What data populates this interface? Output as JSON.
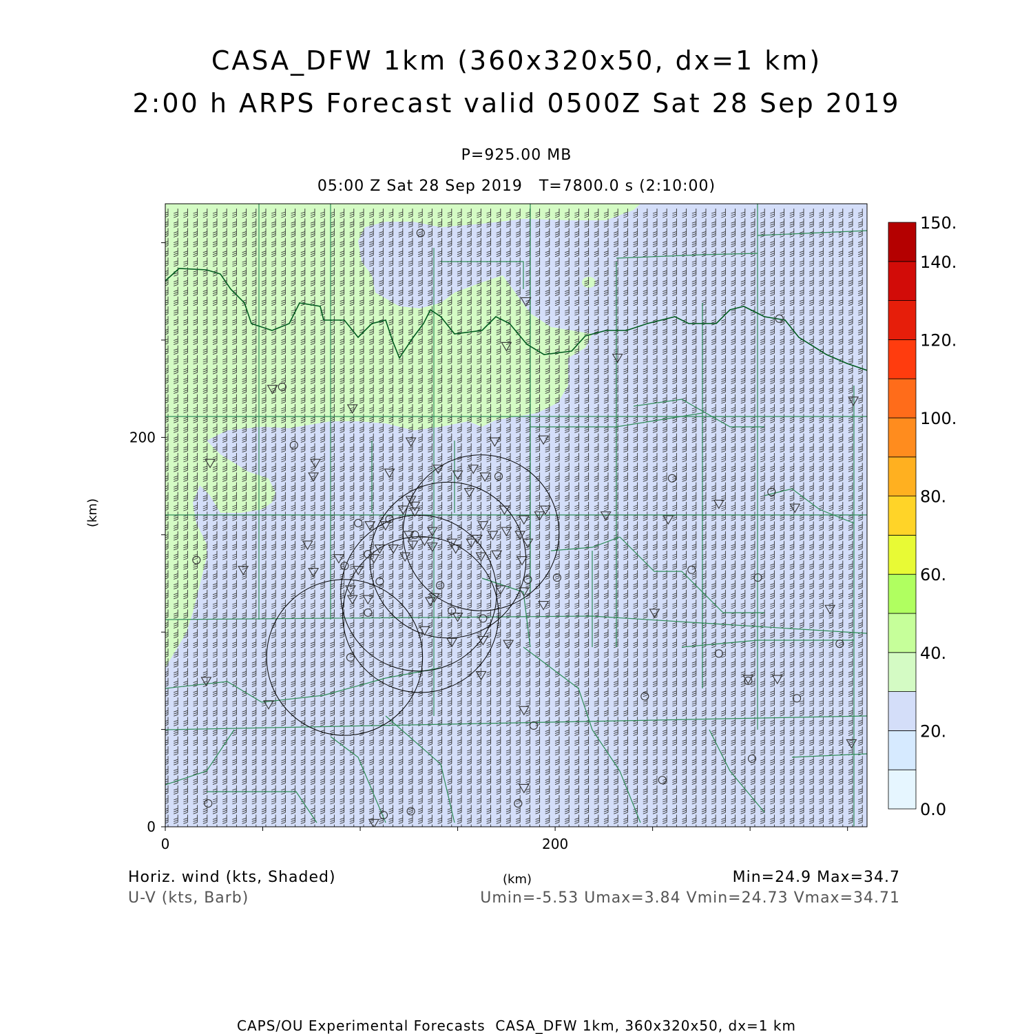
{
  "header": {
    "title_line1": "CASA_DFW 1km (360x320x50, dx=1 km)",
    "title_line2": "2:00 h ARPS Forecast valid 0500Z Sat 28 Sep 2019",
    "level": "P=925.00 MB",
    "time_info": "05:00 Z Sat 28 Sep 2019   T=7800.0 s (2:10:00)"
  },
  "footer": {
    "field_label": "Horiz. wind (kts, Shaded)",
    "vector_label": "U-V (kts, Barb)",
    "x_unit": "(km)",
    "minmax": "Min=24.9 Max=34.7",
    "uv_stats": "Umin=-5.53 Umax=3.84 Vmin=24.73 Vmax=34.71",
    "credit": "CAPS/OU Experimental Forecasts  CASA_DFW 1km, 360x320x50, dx=1 km"
  },
  "colors": {
    "low_wind_fill": "#d4def9",
    "high_wind_fill": "#d4fbc4",
    "county_lines": "#2e8b57",
    "state_border": "#005a1e",
    "barbs": "#333333"
  },
  "chart_data": {
    "type": "heatmap",
    "field": "horizontal wind speed (kts)",
    "xlabel": "(km)",
    "ylabel": "(km)",
    "xlim": [
      0,
      360
    ],
    "ylim": [
      0,
      320
    ],
    "x_ticks": [
      0,
      200
    ],
    "y_ticks": [
      0,
      200
    ],
    "min": 24.9,
    "max": 34.7,
    "stats": {
      "Umin": -5.53,
      "Umax": 3.84,
      "Vmin": 24.73,
      "Vmax": 34.71
    },
    "colorbar": {
      "levels": [
        0,
        10,
        20,
        30,
        40,
        50,
        60,
        70,
        80,
        90,
        100,
        110,
        120,
        130,
        140,
        150
      ],
      "labels": [
        "0.0",
        "20.",
        "40.",
        "60.",
        "80.",
        "100.",
        "120.",
        "140.",
        "150."
      ],
      "label_values": [
        0,
        20,
        40,
        60,
        80,
        100,
        120,
        140,
        150
      ],
      "colors": [
        "#e6f6ff",
        "#d6eaff",
        "#d4def9",
        "#d4fbc4",
        "#c6ff9a",
        "#b0ff60",
        "#e8fa35",
        "#ffd428",
        "#ffb020",
        "#ff8c1e",
        "#ff6c1a",
        "#ff3c0e",
        "#e61e0a",
        "#d20c08",
        "#b40000"
      ]
    },
    "shaded_regions": [
      {
        "range_kts": [
          30,
          40
        ],
        "description_area": "northwest and west"
      },
      {
        "range_kts": [
          20,
          30
        ],
        "description_area": "remainder"
      }
    ],
    "radar_sites": [
      {
        "x": 92,
        "y": 87,
        "radius": 40
      },
      {
        "x": 131,
        "y": 109,
        "radius": 40
      },
      {
        "x": 130,
        "y": 120,
        "radius": 40
      },
      {
        "x": 145,
        "y": 137,
        "radius": 40
      },
      {
        "x": 162,
        "y": 151,
        "radius": 40
      }
    ],
    "stations_circle": [
      [
        131,
        305
      ],
      [
        60,
        226
      ],
      [
        315,
        261
      ],
      [
        66,
        196
      ],
      [
        260,
        179
      ],
      [
        171,
        180
      ],
      [
        16,
        137
      ],
      [
        99,
        156
      ],
      [
        92,
        134
      ],
      [
        104,
        140
      ],
      [
        110,
        126
      ],
      [
        104,
        110
      ],
      [
        95,
        87
      ],
      [
        147,
        111
      ],
      [
        141,
        124
      ],
      [
        186,
        127
      ],
      [
        201,
        128
      ],
      [
        270,
        132
      ],
      [
        163,
        107
      ],
      [
        284,
        89
      ],
      [
        246,
        67
      ],
      [
        299,
        75
      ],
      [
        324,
        66
      ],
      [
        189,
        52
      ],
      [
        255,
        24
      ],
      [
        301,
        35
      ],
      [
        22,
        12
      ],
      [
        112,
        6
      ],
      [
        126,
        8
      ],
      [
        181,
        12
      ],
      [
        311,
        172
      ],
      [
        304,
        128
      ],
      [
        346,
        94
      ],
      [
        128,
        150
      ],
      [
        115,
        158
      ]
    ],
    "stations_triangle": [
      [
        185,
        270
      ],
      [
        175,
        247
      ],
      [
        232,
        241
      ],
      [
        55,
        225
      ],
      [
        96,
        215
      ],
      [
        126,
        198
      ],
      [
        169,
        198
      ],
      [
        194,
        199
      ],
      [
        23,
        187
      ],
      [
        77,
        187
      ],
      [
        76,
        180
      ],
      [
        115,
        182
      ],
      [
        140,
        184
      ],
      [
        150,
        181
      ],
      [
        158,
        184
      ],
      [
        164,
        180
      ],
      [
        156,
        172
      ],
      [
        174,
        163
      ],
      [
        195,
        163
      ],
      [
        126,
        168
      ],
      [
        122,
        163
      ],
      [
        128,
        162
      ],
      [
        105,
        155
      ],
      [
        113,
        155
      ],
      [
        125,
        150
      ],
      [
        133,
        147
      ],
      [
        137,
        152
      ],
      [
        147,
        146
      ],
      [
        157,
        146
      ],
      [
        160,
        148
      ],
      [
        163,
        155
      ],
      [
        168,
        150
      ],
      [
        175,
        152
      ],
      [
        184,
        158
      ],
      [
        192,
        160
      ],
      [
        182,
        150
      ],
      [
        186,
        146
      ],
      [
        183,
        137
      ],
      [
        170,
        140
      ],
      [
        162,
        139
      ],
      [
        149,
        143
      ],
      [
        137,
        144
      ],
      [
        127,
        145
      ],
      [
        123,
        139
      ],
      [
        117,
        143
      ],
      [
        110,
        143
      ],
      [
        107,
        138
      ],
      [
        99,
        132
      ],
      [
        89,
        138
      ],
      [
        76,
        131
      ],
      [
        73,
        145
      ],
      [
        40,
        132
      ],
      [
        95,
        122
      ],
      [
        96,
        117
      ],
      [
        104,
        117
      ],
      [
        136,
        116
      ],
      [
        138,
        118
      ],
      [
        172,
        122
      ],
      [
        184,
        121
      ],
      [
        194,
        114
      ],
      [
        133,
        101
      ],
      [
        147,
        95
      ],
      [
        163,
        96
      ],
      [
        176,
        94
      ],
      [
        162,
        78
      ],
      [
        184,
        60
      ],
      [
        184,
        20
      ],
      [
        107,
        2
      ],
      [
        226,
        160
      ],
      [
        284,
        166
      ],
      [
        323,
        164
      ],
      [
        341,
        112
      ],
      [
        251,
        110
      ],
      [
        299,
        76
      ],
      [
        314,
        76
      ],
      [
        21,
        75
      ],
      [
        53,
        63
      ],
      [
        353,
        219
      ],
      [
        352,
        43
      ],
      [
        258,
        158
      ],
      [
        128,
        165
      ],
      [
        150,
        108
      ]
    ]
  }
}
